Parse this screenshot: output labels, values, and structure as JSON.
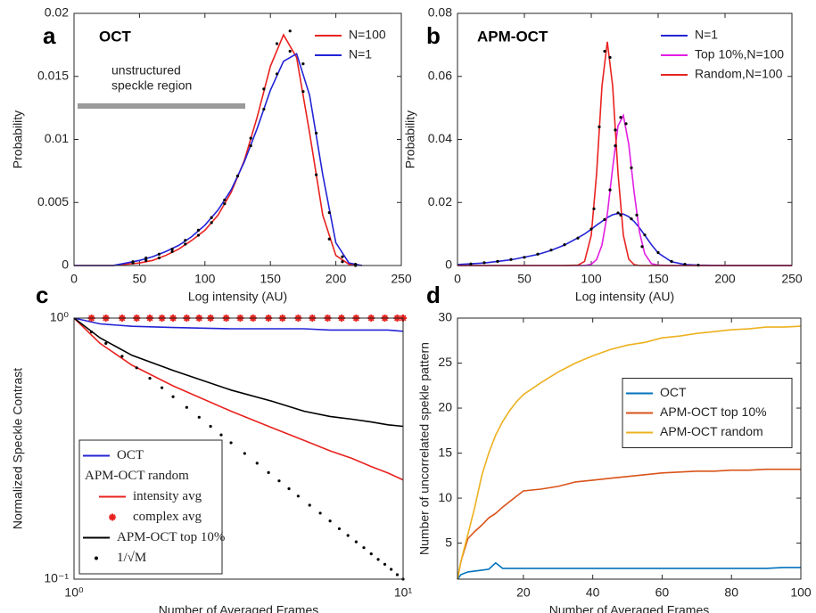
{
  "chart_data": [
    {
      "type": "line",
      "panel_label": "a",
      "title": "OCT",
      "xlabel": "Log intensity (AU)",
      "ylabel": "Probability",
      "xlim": [
        0,
        250
      ],
      "xticks": [
        0,
        50,
        100,
        150,
        200,
        250
      ],
      "ylim": [
        0,
        0.02
      ],
      "yticks": [
        0,
        0.005,
        0.01,
        0.015,
        0.02
      ],
      "legend_position": "upper right",
      "legend_frame": false,
      "annotation": [
        "unstructured",
        "speckle region"
      ],
      "x": [
        0,
        10,
        20,
        30,
        40,
        50,
        60,
        70,
        80,
        90,
        100,
        110,
        120,
        130,
        140,
        150,
        160,
        170,
        180,
        190,
        200,
        210,
        220
      ],
      "series": [
        {
          "name": "N=100",
          "color": "#e8221f",
          "style": "line",
          "values": [
            0,
            0,
            0,
            0,
            0.0001,
            0.0002,
            0.0004,
            0.0008,
            0.0013,
            0.002,
            0.0028,
            0.004,
            0.0058,
            0.0083,
            0.0118,
            0.0158,
            0.0183,
            0.0165,
            0.0105,
            0.004,
            0.0008,
            0.0001,
            0
          ]
        },
        {
          "name": "N=1",
          "color": "#2323d6",
          "style": "line",
          "values": [
            0,
            0,
            0,
            0,
            0.0002,
            0.0004,
            0.0007,
            0.0011,
            0.0016,
            0.0023,
            0.0032,
            0.0044,
            0.006,
            0.0082,
            0.0109,
            0.0139,
            0.0162,
            0.0168,
            0.0135,
            0.0072,
            0.0018,
            0.0002,
            0
          ]
        },
        {
          "color": "#000000",
          "style": "dots",
          "x": [
            45,
            55,
            65,
            75,
            85,
            95,
            105,
            115,
            125,
            135,
            145,
            155,
            165,
            175,
            185,
            195,
            205,
            215
          ],
          "values": [
            0.0002,
            0.0004,
            0.0006,
            0.0011,
            0.0017,
            0.0024,
            0.0034,
            0.0049,
            0.0071,
            0.0101,
            0.014,
            0.0176,
            0.0186,
            0.0138,
            0.0072,
            0.0021,
            0.0003,
            0
          ]
        },
        {
          "color": "#000000",
          "style": "dots",
          "x": [
            45,
            55,
            65,
            75,
            85,
            95,
            105,
            115,
            125,
            135,
            145,
            155,
            165,
            175,
            185,
            195,
            205,
            215
          ],
          "values": [
            0.0003,
            0.0006,
            0.0009,
            0.0013,
            0.002,
            0.0028,
            0.0038,
            0.0052,
            0.0071,
            0.0095,
            0.0124,
            0.0152,
            0.017,
            0.016,
            0.0105,
            0.0042,
            0.0007,
            0.0001
          ]
        }
      ]
    },
    {
      "type": "line",
      "panel_label": "b",
      "title": "APM-OCT",
      "xlabel": "Log intensity (AU)",
      "ylabel": "Probability",
      "xlim": [
        0,
        250
      ],
      "xticks": [
        0,
        50,
        100,
        150,
        200,
        250
      ],
      "ylim": [
        0,
        0.08
      ],
      "yticks": [
        0,
        0.02,
        0.04,
        0.06,
        0.08
      ],
      "legend_position": "upper right",
      "legend_frame": false,
      "x": [
        0,
        20,
        40,
        60,
        70,
        80,
        90,
        95,
        100,
        104,
        108,
        112,
        116,
        120,
        124,
        128,
        132,
        136,
        140,
        145,
        150,
        160,
        170,
        180,
        200,
        250
      ],
      "series": [
        {
          "name": "N=1",
          "color": "#2323d6",
          "style": "line",
          "values": [
            0.0003,
            0.0008,
            0.0018,
            0.0035,
            0.0048,
            0.0065,
            0.0088,
            0.01,
            0.0115,
            0.0128,
            0.014,
            0.0152,
            0.0161,
            0.0165,
            0.0163,
            0.0155,
            0.014,
            0.012,
            0.0096,
            0.0066,
            0.004,
            0.0012,
            0.0003,
            0.0001,
            0,
            0
          ]
        },
        {
          "name": "Top 10%,N=100",
          "color": "#e21ee2",
          "style": "line",
          "values": [
            0,
            0,
            0,
            0,
            0,
            0,
            0,
            0,
            0.0004,
            0.0019,
            0.0065,
            0.0163,
            0.031,
            0.0443,
            0.0476,
            0.0385,
            0.0234,
            0.0107,
            0.0037,
            0.0006,
            0.0001,
            0,
            0,
            0,
            0,
            0
          ]
        },
        {
          "name": "Random,N=100",
          "color": "#e8221f",
          "style": "line",
          "values": [
            0,
            0,
            0,
            0,
            0,
            0,
            0.0001,
            0.0013,
            0.0096,
            0.0292,
            0.0569,
            0.071,
            0.0569,
            0.0292,
            0.0096,
            0.002,
            0.0003,
            0,
            0,
            0,
            0,
            0,
            0,
            0,
            0,
            0
          ]
        },
        {
          "color": "#000000",
          "style": "dots",
          "x": [
            10,
            20,
            30,
            40,
            50,
            60,
            70,
            80,
            90,
            100,
            110,
            120,
            130,
            140,
            150,
            160,
            170,
            180
          ],
          "values": [
            0.0005,
            0.0009,
            0.0013,
            0.0019,
            0.0026,
            0.0036,
            0.0049,
            0.0066,
            0.0087,
            0.0116,
            0.0146,
            0.0167,
            0.0148,
            0.0097,
            0.0041,
            0.0013,
            0.0004,
            0.0001
          ]
        },
        {
          "color": "#000000",
          "style": "dots",
          "x": [
            102,
            106,
            110,
            114,
            118,
            122
          ],
          "values": [
            0.018,
            0.044,
            0.068,
            0.066,
            0.043,
            0.016
          ]
        },
        {
          "color": "#000000",
          "style": "dots",
          "x": [
            114,
            118,
            122,
            126,
            130,
            134,
            138
          ],
          "values": [
            0.024,
            0.038,
            0.047,
            0.045,
            0.031,
            0.016,
            0.006
          ]
        }
      ]
    },
    {
      "type": "line",
      "panel_label": "c",
      "xlabel": "Number of Averaged Frames",
      "ylabel": "Normalized Speckle Contrast",
      "xscale": "log",
      "yscale": "log",
      "xlim": [
        1,
        10
      ],
      "xticks": [
        {
          "value": 1,
          "label": "10⁰"
        },
        {
          "value": 10,
          "label": "10¹"
        }
      ],
      "ylim": [
        0.1,
        1
      ],
      "yticks": [
        {
          "value": 0.1,
          "label": "10⁻¹"
        },
        {
          "value": 1,
          "label": "10⁰"
        }
      ],
      "legend_position": "lower left",
      "legend_frame": true,
      "legend_heading": "APM-OCT random",
      "x": [
        1,
        1.2,
        1.5,
        2,
        3,
        4,
        5,
        6,
        7,
        8,
        9,
        10
      ],
      "series": [
        {
          "name": "OCT",
          "color": "#2323d6",
          "style": "line",
          "values": [
            1,
            0.95,
            0.93,
            0.92,
            0.91,
            0.91,
            0.91,
            0.9,
            0.9,
            0.9,
            0.9,
            0.89
          ]
        },
        {
          "name": "intensity avg",
          "color": "#e8221f",
          "style": "line",
          "values": [
            1,
            0.8,
            0.66,
            0.55,
            0.44,
            0.38,
            0.34,
            0.31,
            0.29,
            0.27,
            0.255,
            0.24
          ]
        },
        {
          "name": "complex avg",
          "color": "#e8221f",
          "style": "stars",
          "x": [
            1.13,
            1.25,
            1.4,
            1.55,
            1.7,
            1.85,
            2,
            2.2,
            2.4,
            2.6,
            2.9,
            3.2,
            3.5,
            3.9,
            4.3,
            4.8,
            5.3,
            5.9,
            6.5,
            7.2,
            8,
            8.8,
            9.6,
            10
          ],
          "values": [
            1,
            1,
            1,
            1,
            1,
            1,
            1,
            1,
            1,
            1,
            1,
            1,
            1,
            1,
            1,
            1,
            1,
            1,
            1,
            1,
            1,
            1,
            1,
            1
          ]
        },
        {
          "name": "APM-OCT top 10%",
          "color": "#000000",
          "style": "line",
          "values": [
            1,
            0.84,
            0.72,
            0.63,
            0.53,
            0.48,
            0.44,
            0.42,
            0.41,
            0.4,
            0.39,
            0.385
          ]
        },
        {
          "name": "1/√M",
          "color": "#000000",
          "style": "dots",
          "x": [
            1.13,
            1.25,
            1.4,
            1.55,
            1.7,
            1.85,
            2,
            2.2,
            2.4,
            2.6,
            2.8,
            3,
            3.3,
            3.6,
            3.9,
            4.2,
            4.5,
            4.8,
            5.2,
            5.6,
            6,
            6.4,
            6.8,
            7.2,
            7.6,
            8,
            8.4,
            8.8,
            9.2,
            9.6,
            10
          ],
          "values": [
            0.885,
            0.8,
            0.714,
            0.645,
            0.588,
            0.541,
            0.5,
            0.455,
            0.417,
            0.385,
            0.357,
            0.333,
            0.303,
            0.278,
            0.256,
            0.238,
            0.222,
            0.208,
            0.192,
            0.179,
            0.167,
            0.156,
            0.147,
            0.139,
            0.132,
            0.125,
            0.119,
            0.114,
            0.109,
            0.104,
            0.1
          ]
        }
      ]
    },
    {
      "type": "line",
      "panel_label": "d",
      "xlabel": "Number of Averaged Frames",
      "ylabel": "Number of uncorrelated spekle pattern",
      "xlim": [
        1,
        100
      ],
      "xticks": [
        20,
        40,
        60,
        80,
        100
      ],
      "ylim": [
        1,
        30
      ],
      "yticks": [
        5,
        10,
        15,
        20,
        25,
        30
      ],
      "legend_position": "center right",
      "legend_frame": true,
      "x": [
        1,
        2,
        4,
        6,
        8,
        10,
        12,
        14,
        16,
        18,
        20,
        25,
        30,
        35,
        40,
        45,
        50,
        55,
        60,
        65,
        70,
        75,
        80,
        85,
        90,
        95,
        100
      ],
      "series": [
        {
          "name": "OCT",
          "color": "#0072bd",
          "style": "line",
          "values": [
            1,
            1.5,
            1.8,
            1.9,
            2,
            2.1,
            2.8,
            2.2,
            2.2,
            2.2,
            2.2,
            2.2,
            2.2,
            2.2,
            2.2,
            2.2,
            2.2,
            2.2,
            2.2,
            2.2,
            2.2,
            2.2,
            2.2,
            2.2,
            2.2,
            2.3,
            2.3
          ]
        },
        {
          "name": "APM-OCT top 10%",
          "color": "#d95319",
          "style": "line",
          "values": [
            1,
            3,
            5.5,
            6.3,
            7,
            7.8,
            8.3,
            9,
            9.6,
            10.2,
            10.8,
            11,
            11.3,
            11.8,
            12,
            12.2,
            12.4,
            12.6,
            12.8,
            12.9,
            13,
            13,
            13.1,
            13.1,
            13.2,
            13.2,
            13.2
          ]
        },
        {
          "name": "APM-OCT random",
          "color": "#edb120",
          "style": "line",
          "values": [
            1,
            3,
            6,
            9,
            12.5,
            15,
            17,
            18.5,
            19.7,
            20.7,
            21.5,
            22.8,
            24,
            25,
            25.8,
            26.5,
            27,
            27.3,
            27.8,
            28,
            28.3,
            28.5,
            28.7,
            28.8,
            29,
            29,
            29.1
          ]
        }
      ]
    }
  ]
}
